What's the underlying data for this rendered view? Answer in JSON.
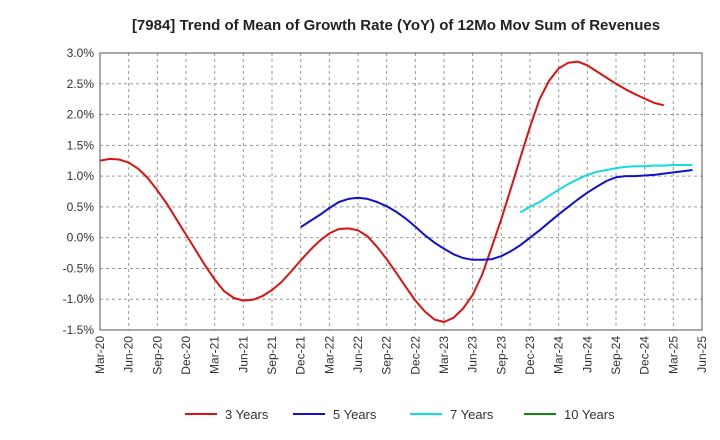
{
  "chart_data": {
    "type": "line",
    "title": "[7984]  Trend of Mean of Growth Rate (YoY) of 12Mo Mov Sum of Revenues",
    "xlabel": "",
    "ylabel": "",
    "ylim": [
      -1.5,
      3.0
    ],
    "yticks": [
      -1.5,
      -1.0,
      -0.5,
      0.0,
      0.5,
      1.0,
      1.5,
      2.0,
      2.5,
      3.0
    ],
    "ytick_labels": [
      "-1.5%",
      "-1.0%",
      "-0.5%",
      "0.0%",
      "0.5%",
      "1.0%",
      "1.5%",
      "2.0%",
      "2.5%",
      "3.0%"
    ],
    "x_tick_labels": [
      "Mar-20",
      "Jun-20",
      "Sep-20",
      "Dec-20",
      "Mar-21",
      "Jun-21",
      "Sep-21",
      "Dec-21",
      "Mar-22",
      "Jun-22",
      "Sep-22",
      "Dec-22",
      "Mar-23",
      "Jun-23",
      "Sep-23",
      "Dec-23",
      "Mar-24",
      "Jun-24",
      "Sep-24",
      "Dec-24",
      "Mar-25",
      "Jun-25"
    ],
    "grid": true,
    "legend_position": "bottom",
    "series": [
      {
        "name": "3 Years",
        "color": "#dd1111",
        "start_index": 0,
        "values": [
          1.25,
          1.28,
          1.27,
          1.22,
          1.12,
          0.97,
          0.77,
          0.55,
          0.3,
          0.05,
          -0.2,
          -0.45,
          -0.68,
          -0.87,
          -0.98,
          -1.02,
          -1.01,
          -0.95,
          -0.85,
          -0.72,
          -0.55,
          -0.37,
          -0.2,
          -0.05,
          0.07,
          0.14,
          0.15,
          0.12,
          0.02,
          -0.15,
          -0.35,
          -0.57,
          -0.8,
          -1.02,
          -1.2,
          -1.33,
          -1.37,
          -1.3,
          -1.15,
          -0.93,
          -0.6,
          -0.15,
          0.3,
          0.8,
          1.3,
          1.8,
          2.25,
          2.55,
          2.75,
          2.84,
          2.86,
          2.8,
          2.7,
          2.6,
          2.5,
          2.41,
          2.33,
          2.26,
          2.19,
          2.15
        ]
      },
      {
        "name": "5 Years",
        "color": "#1111cc",
        "start_index": 21,
        "values": [
          0.17,
          0.27,
          0.37,
          0.48,
          0.58,
          0.63,
          0.65,
          0.63,
          0.58,
          0.51,
          0.42,
          0.31,
          0.18,
          0.04,
          -0.08,
          -0.18,
          -0.27,
          -0.33,
          -0.36,
          -0.36,
          -0.35,
          -0.3,
          -0.22,
          -0.12,
          0.0,
          0.12,
          0.25,
          0.38,
          0.5,
          0.62,
          0.73,
          0.83,
          0.92,
          0.98,
          1.0,
          1.0,
          1.01,
          1.02,
          1.04,
          1.06,
          1.08,
          1.1
        ]
      },
      {
        "name": "7 Years",
        "color": "#11dddd",
        "start_index": 44,
        "values": [
          0.41,
          0.5,
          0.58,
          0.68,
          0.78,
          0.87,
          0.95,
          1.02,
          1.07,
          1.1,
          1.13,
          1.15,
          1.16,
          1.16,
          1.17,
          1.17,
          1.18,
          1.18,
          1.18
        ]
      },
      {
        "name": "10 Years",
        "color": "#118811",
        "start_index": 0,
        "values": []
      }
    ]
  }
}
